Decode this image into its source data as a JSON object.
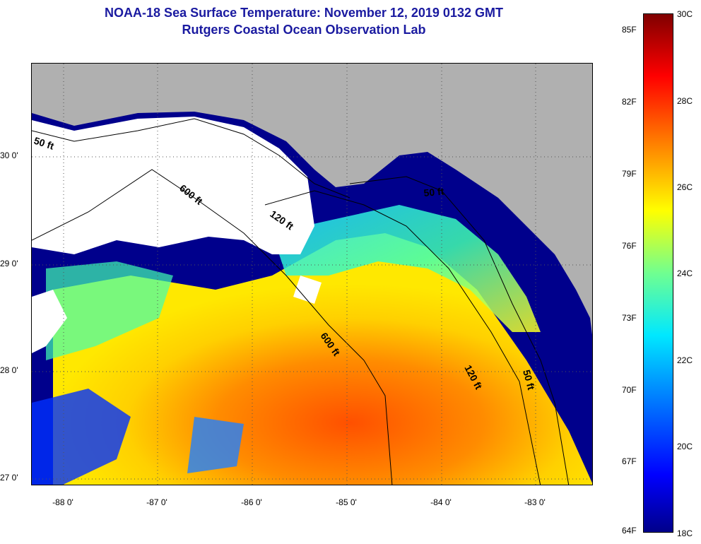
{
  "header": {
    "title": "NOAA-18 Sea Surface Temperature:  November 12, 2019 0132 GMT",
    "subtitle": "Rutgers Coastal Ocean Observation Lab"
  },
  "map": {
    "lat_labels": [
      "30 0'",
      "29 0'",
      "28 0'",
      "27 0'"
    ],
    "lon_labels": [
      "-88 0'",
      "-87 0'",
      "-86 0'",
      "-85 0'",
      "-84 0'",
      "-83 0'"
    ],
    "contour_labels": [
      "50 ft",
      "600 ft",
      "120 ft",
      "50 ft",
      "600 ft",
      "120 ft",
      "50 ft"
    ]
  },
  "colorbar": {
    "fahrenheit": [
      "85F",
      "82F",
      "79F",
      "76F",
      "73F",
      "70F",
      "67F",
      "64F"
    ],
    "celsius": [
      "30C",
      "28C",
      "26C",
      "24C",
      "22C",
      "20C",
      "18C"
    ]
  },
  "colors": {
    "land": "#b0b0b0",
    "cloud": "#ffffff",
    "title": "#1a1aa0"
  }
}
